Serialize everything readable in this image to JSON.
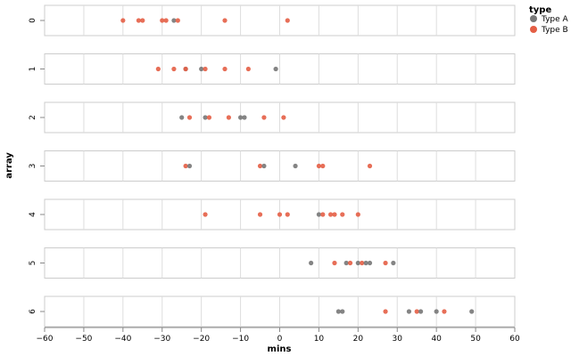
{
  "chart_data": {
    "type": "scatter",
    "layout": "faceted-rows",
    "xlabel": "mins",
    "ylabel": "array",
    "xlim": [
      -60,
      60
    ],
    "x_ticks": [
      -60,
      -50,
      -40,
      -30,
      -20,
      -10,
      0,
      10,
      20,
      30,
      40,
      50,
      60
    ],
    "grid": true,
    "legend": {
      "title": "type",
      "placement": "top-right",
      "entries": [
        {
          "name": "Type A",
          "color": "#777777"
        },
        {
          "name": "Type B",
          "color": "#e45e45"
        }
      ]
    },
    "rows": [
      {
        "label": "0",
        "points": [
          {
            "x": -40,
            "type": "Type B"
          },
          {
            "x": -36,
            "type": "Type B"
          },
          {
            "x": -35,
            "type": "Type B"
          },
          {
            "x": -30,
            "type": "Type B"
          },
          {
            "x": -29,
            "type": "Type B"
          },
          {
            "x": -27,
            "type": "Type A"
          },
          {
            "x": -26,
            "type": "Type B"
          },
          {
            "x": -14,
            "type": "Type B"
          },
          {
            "x": 2,
            "type": "Type B"
          }
        ]
      },
      {
        "label": "1",
        "points": [
          {
            "x": -31,
            "type": "Type B"
          },
          {
            "x": -27,
            "type": "Type B"
          },
          {
            "x": -24,
            "type": "Type A"
          },
          {
            "x": -24,
            "type": "Type B"
          },
          {
            "x": -20,
            "type": "Type A"
          },
          {
            "x": -19,
            "type": "Type B"
          },
          {
            "x": -14,
            "type": "Type B"
          },
          {
            "x": -8,
            "type": "Type B"
          },
          {
            "x": -1,
            "type": "Type A"
          }
        ]
      },
      {
        "label": "2",
        "points": [
          {
            "x": -25,
            "type": "Type A"
          },
          {
            "x": -23,
            "type": "Type B"
          },
          {
            "x": -19,
            "type": "Type A"
          },
          {
            "x": -18,
            "type": "Type B"
          },
          {
            "x": -13,
            "type": "Type B"
          },
          {
            "x": -10,
            "type": "Type A"
          },
          {
            "x": -9,
            "type": "Type A"
          },
          {
            "x": -4,
            "type": "Type B"
          },
          {
            "x": 1,
            "type": "Type B"
          }
        ]
      },
      {
        "label": "3",
        "points": [
          {
            "x": -24,
            "type": "Type B"
          },
          {
            "x": -23,
            "type": "Type A"
          },
          {
            "x": -5,
            "type": "Type B"
          },
          {
            "x": -4,
            "type": "Type A"
          },
          {
            "x": 4,
            "type": "Type A"
          },
          {
            "x": 10,
            "type": "Type B"
          },
          {
            "x": 11,
            "type": "Type B"
          },
          {
            "x": 23,
            "type": "Type B"
          }
        ]
      },
      {
        "label": "4",
        "points": [
          {
            "x": -19,
            "type": "Type B"
          },
          {
            "x": -5,
            "type": "Type B"
          },
          {
            "x": 0,
            "type": "Type B"
          },
          {
            "x": 2,
            "type": "Type B"
          },
          {
            "x": 10,
            "type": "Type A"
          },
          {
            "x": 11,
            "type": "Type B"
          },
          {
            "x": 13,
            "type": "Type B"
          },
          {
            "x": 14,
            "type": "Type B"
          },
          {
            "x": 16,
            "type": "Type B"
          },
          {
            "x": 20,
            "type": "Type B"
          }
        ]
      },
      {
        "label": "5",
        "points": [
          {
            "x": 8,
            "type": "Type A"
          },
          {
            "x": 14,
            "type": "Type B"
          },
          {
            "x": 17,
            "type": "Type A"
          },
          {
            "x": 18,
            "type": "Type B"
          },
          {
            "x": 20,
            "type": "Type A"
          },
          {
            "x": 21,
            "type": "Type B"
          },
          {
            "x": 22,
            "type": "Type A"
          },
          {
            "x": 23,
            "type": "Type A"
          },
          {
            "x": 27,
            "type": "Type B"
          },
          {
            "x": 29,
            "type": "Type A"
          }
        ]
      },
      {
        "label": "6",
        "points": [
          {
            "x": 15,
            "type": "Type A"
          },
          {
            "x": 16,
            "type": "Type A"
          },
          {
            "x": 27,
            "type": "Type B"
          },
          {
            "x": 33,
            "type": "Type A"
          },
          {
            "x": 35,
            "type": "Type B"
          },
          {
            "x": 36,
            "type": "Type A"
          },
          {
            "x": 40,
            "type": "Type A"
          },
          {
            "x": 42,
            "type": "Type B"
          },
          {
            "x": 49,
            "type": "Type A"
          }
        ]
      }
    ]
  }
}
